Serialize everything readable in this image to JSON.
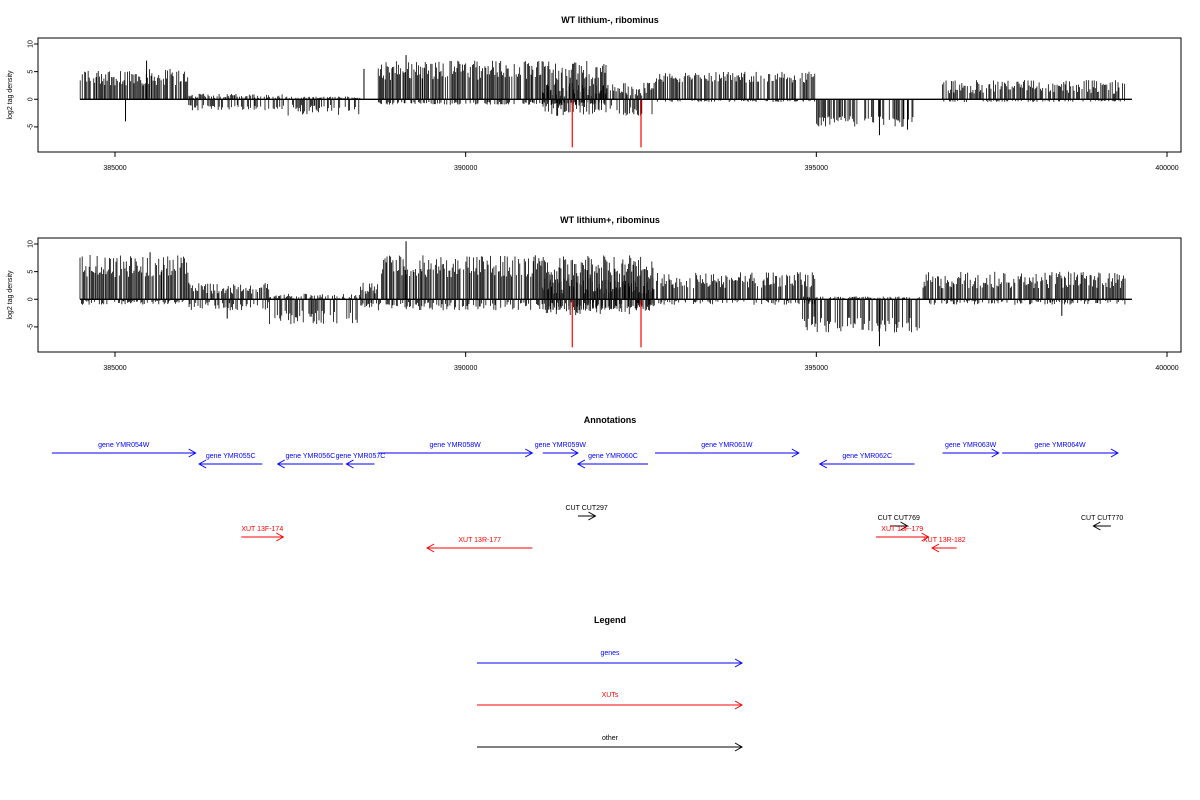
{
  "chart_data": [
    {
      "type": "bar",
      "title": "WT lithium-, ribominus",
      "ylabel": "log2 tag density",
      "xlim": [
        384500,
        399500
      ],
      "ylim": [
        -9,
        10
      ],
      "x_ticks": [
        "385000",
        "390000",
        "395000",
        "400000"
      ],
      "y_ticks": [
        "-5",
        "0",
        "5",
        "10"
      ],
      "baseline_span": [
        384500,
        399500
      ],
      "highlight_color": "#ff0000",
      "bar_color": "#000000",
      "segments": [
        {
          "x": [
            384500,
            386050
          ],
          "pos": [
            2.5,
            5.5
          ],
          "neg": [
            0,
            0
          ]
        },
        {
          "x": [
            386050,
            387400
          ],
          "pos": [
            0,
            1
          ],
          "neg": [
            -1,
            -2
          ]
        },
        {
          "x": [
            387400,
            388500
          ],
          "pos": [
            0,
            0.5
          ],
          "neg": [
            -1,
            -3
          ]
        },
        {
          "x": [
            388750,
            392000
          ],
          "pos": [
            3.5,
            7
          ],
          "neg": [
            -0.5,
            -1
          ]
        },
        {
          "x": [
            391100,
            392700
          ],
          "pos": [
            0.5,
            3
          ],
          "neg": [
            -1,
            -3
          ]
        },
        {
          "x": [
            392700,
            395000
          ],
          "pos": [
            3,
            5
          ],
          "neg": [
            0,
            -0.5
          ]
        },
        {
          "x": [
            395000,
            396400
          ],
          "pos": [
            0,
            0
          ],
          "neg": [
            -3,
            -5
          ]
        },
        {
          "x": [
            396800,
            399400
          ],
          "pos": [
            1,
            3.5
          ],
          "neg": [
            0,
            -0.5
          ]
        }
      ],
      "spikes": [
        {
          "x": 385450,
          "y": 7
        },
        {
          "x": 389150,
          "y": 8
        },
        {
          "x": 388550,
          "y": 5.5
        },
        {
          "x": 385150,
          "y": -4
        },
        {
          "x": 391300,
          "y": -3
        },
        {
          "x": 395900,
          "y": -6.5
        },
        {
          "x": 396300,
          "y": -5.5
        }
      ],
      "highlights": [
        {
          "x": 391520,
          "y": -8.7
        },
        {
          "x": 392500,
          "y": -8.7
        }
      ]
    },
    {
      "type": "bar",
      "title": "WT lithium+, ribominus",
      "ylabel": "log2 tag density",
      "xlim": [
        384500,
        399500
      ],
      "ylim": [
        -9,
        10
      ],
      "x_ticks": [
        "385000",
        "390000",
        "395000",
        "400000"
      ],
      "y_ticks": [
        "-5",
        "0",
        "5",
        "10"
      ],
      "baseline_span": [
        384500,
        399500
      ],
      "highlight_color": "#ff0000",
      "bar_color": "#000000",
      "segments": [
        {
          "x": [
            384500,
            386050
          ],
          "pos": [
            4,
            8
          ],
          "neg": [
            0,
            -1
          ]
        },
        {
          "x": [
            386050,
            387200
          ],
          "pos": [
            1,
            3
          ],
          "neg": [
            -0.5,
            -2
          ]
        },
        {
          "x": [
            387200,
            388500
          ],
          "pos": [
            0,
            1
          ],
          "neg": [
            -2,
            -4.5
          ]
        },
        {
          "x": [
            388500,
            388750
          ],
          "pos": [
            1,
            3
          ],
          "neg": [
            -0.5,
            -1.5
          ]
        },
        {
          "x": [
            388750,
            392700
          ],
          "pos": [
            4,
            8
          ],
          "neg": [
            -0.5,
            -2
          ]
        },
        {
          "x": [
            391100,
            392700
          ],
          "pos": [
            1,
            4
          ],
          "neg": [
            -1,
            -3
          ]
        },
        {
          "x": [
            392700,
            395000
          ],
          "pos": [
            2,
            5
          ],
          "neg": [
            0,
            -1
          ]
        },
        {
          "x": [
            394800,
            396500
          ],
          "pos": [
            0,
            0.5
          ],
          "neg": [
            -3,
            -6
          ]
        },
        {
          "x": [
            396500,
            399400
          ],
          "pos": [
            2,
            5
          ],
          "neg": [
            0,
            -1
          ]
        }
      ],
      "spikes": [
        {
          "x": 389150,
          "y": 10.5
        },
        {
          "x": 385500,
          "y": 8.5
        },
        {
          "x": 395900,
          "y": -8.5
        },
        {
          "x": 398500,
          "y": -3
        },
        {
          "x": 386600,
          "y": -3.5
        }
      ],
      "highlights": [
        {
          "x": 391520,
          "y": -8.7
        },
        {
          "x": 392500,
          "y": -8.7
        }
      ]
    }
  ],
  "annotations": {
    "title": "Annotations",
    "xlim": [
      384500,
      399500
    ],
    "items": [
      {
        "label": "gene YMR054W",
        "start": 384100,
        "end": 386150,
        "dir": "right",
        "color": "#0000ff",
        "row": 0
      },
      {
        "label": "gene YMR055C",
        "start": 386200,
        "end": 387100,
        "dir": "left",
        "color": "#0000ff",
        "row": 1
      },
      {
        "label": "gene YMR056C",
        "start": 387320,
        "end": 388250,
        "dir": "left",
        "color": "#0000ff",
        "row": 1
      },
      {
        "label": "gene YMR057C",
        "start": 388300,
        "end": 388700,
        "dir": "left",
        "color": "#0000ff",
        "row": 1
      },
      {
        "label": "gene YMR058W",
        "start": 388750,
        "end": 390950,
        "dir": "right",
        "color": "#0000ff",
        "row": 0
      },
      {
        "label": "gene YMR059W",
        "start": 391100,
        "end": 391600,
        "dir": "right",
        "color": "#0000ff",
        "row": 0
      },
      {
        "label": "gene YMR060C",
        "start": 391600,
        "end": 392600,
        "dir": "left",
        "color": "#0000ff",
        "row": 1
      },
      {
        "label": "gene YMR061W",
        "start": 392700,
        "end": 394750,
        "dir": "right",
        "color": "#0000ff",
        "row": 0
      },
      {
        "label": "gene YMR062C",
        "start": 395050,
        "end": 396400,
        "dir": "left",
        "color": "#0000ff",
        "row": 1
      },
      {
        "label": "gene YMR063W",
        "start": 396800,
        "end": 397600,
        "dir": "right",
        "color": "#0000ff",
        "row": 0
      },
      {
        "label": "gene YMR064W",
        "start": 397650,
        "end": 399300,
        "dir": "right",
        "color": "#0000ff",
        "row": 0
      },
      {
        "label": "CUT CUT297",
        "start": 391600,
        "end": 391850,
        "dir": "right",
        "color": "#000000",
        "row": 2
      },
      {
        "label": "CUT CUT769",
        "start": 396050,
        "end": 396300,
        "dir": "right",
        "color": "#000000",
        "row": 3
      },
      {
        "label": "CUT CUT770",
        "start": 398950,
        "end": 399200,
        "dir": "left",
        "color": "#000000",
        "row": 3
      },
      {
        "label": "XUT 13F-174",
        "start": 386800,
        "end": 387400,
        "dir": "right",
        "color": "#ff0000",
        "row": 4
      },
      {
        "label": "XUT 13F-179",
        "start": 395850,
        "end": 396600,
        "dir": "right",
        "color": "#ff0000",
        "row": 4
      },
      {
        "label": "XUT 13R-177",
        "start": 389450,
        "end": 390950,
        "dir": "left",
        "color": "#ff0000",
        "row": 5
      },
      {
        "label": "XUT 13R-182",
        "start": 396650,
        "end": 397000,
        "dir": "left",
        "color": "#ff0000",
        "row": 5
      }
    ]
  },
  "legend": {
    "title": "Legend",
    "items": [
      {
        "label": "genes",
        "color": "#0000ff"
      },
      {
        "label": "XUTs",
        "color": "#ff0000"
      },
      {
        "label": "other",
        "color": "#000000"
      }
    ]
  }
}
